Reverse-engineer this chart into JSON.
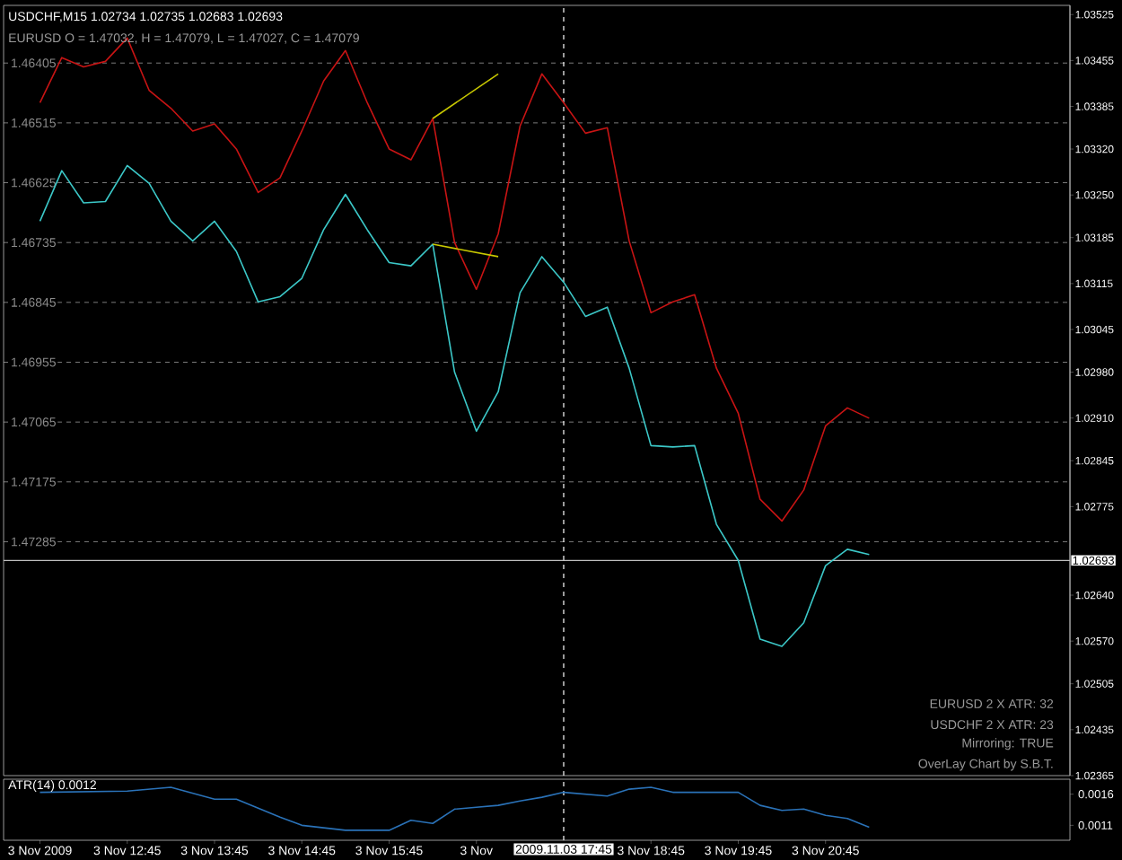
{
  "chart_data": [
    {
      "type": "line",
      "title": "USDCHF,M15  1.02734 1.02735 1.02683 1.02693",
      "subtitle": "EURUSD O = 1.47032, H = 1.47079, L = 1.47027, C = 1.47079",
      "x": [
        "2009-11-03T11:45",
        "2009-11-03T12:00",
        "2009-11-03T12:15",
        "2009-11-03T12:30",
        "2009-11-03T12:45",
        "2009-11-03T13:00",
        "2009-11-03T13:15",
        "2009-11-03T13:30",
        "2009-11-03T13:45",
        "2009-11-03T14:00",
        "2009-11-03T14:15",
        "2009-11-03T14:30",
        "2009-11-03T14:45",
        "2009-11-03T15:00",
        "2009-11-03T15:15",
        "2009-11-03T15:30",
        "2009-11-03T15:45",
        "2009-11-03T16:00",
        "2009-11-03T16:15",
        "2009-11-03T16:30",
        "2009-11-03T16:45",
        "2009-11-03T17:00",
        "2009-11-03T17:15",
        "2009-11-03T17:30",
        "2009-11-03T17:45",
        "2009-11-03T18:00",
        "2009-11-03T18:15",
        "2009-11-03T18:30",
        "2009-11-03T18:45",
        "2009-11-03T19:00",
        "2009-11-03T19:15",
        "2009-11-03T19:30",
        "2009-11-03T19:45",
        "2009-11-03T20:00",
        "2009-11-03T20:15",
        "2009-11-03T20:30",
        "2009-11-03T20:45",
        "2009-11-03T21:00",
        "2009-11-03T21:15"
      ],
      "xlim": [
        "2009-11-03T11:20",
        "2009-11-03T23:33"
      ],
      "ylim": [
        1.47715,
        1.46299
      ],
      "yticks": [
        1.46405,
        1.46515,
        1.46625,
        1.46735,
        1.46845,
        1.46955,
        1.47065,
        1.47175,
        1.47285
      ],
      "y2lim": [
        1.02365,
        1.03539
      ],
      "y2ticks": [
        1.03525,
        1.03455,
        1.03385,
        {
          "value": 1.0332,
          "label": "1.03320"
        },
        {
          "value": 1.0325,
          "label": "1.03250"
        },
        1.03185,
        1.03115,
        1.03045,
        {
          "value": 1.0298,
          "label": "1.02980"
        },
        {
          "value": 1.0291,
          "label": "1.02910"
        },
        1.02845,
        1.02775,
        {
          "value": 1.0264,
          "label": "1.02640"
        },
        {
          "value": 1.0257,
          "label": "1.02570"
        },
        1.02505,
        1.02435,
        1.02365
      ],
      "grid": "y",
      "tick_labels": "y",
      "ref_lines": [
        {
          "axis": "y2",
          "value": 1.02693,
          "label": "1.02693",
          "color": "#c0c0c0"
        },
        {
          "axis": "x",
          "value": "2009-11-03T17:45",
          "color": "#ffffff",
          "line_style": "dashed"
        }
      ],
      "annotations": [
        "EURUSD 2 X ATR: 32",
        "USDCHF 2 X ATR: 23",
        "Mirroring: TRUE",
        "OverLay Chart by S.B.T."
      ],
      "series": [
        {
          "color": "#c81414",
          "values": [
            1.46478,
            1.46395,
            1.46412,
            1.46402,
            1.46359,
            1.46455,
            1.46488,
            1.4653,
            1.46517,
            1.46563,
            1.46643,
            1.46616,
            1.4653,
            1.46438,
            1.46382,
            1.46478,
            1.46563,
            1.46583,
            1.46507,
            1.46735,
            1.46821,
            1.46719,
            1.46521,
            1.46425,
            1.46478,
            1.46534,
            1.46524,
            1.46732,
            1.46864,
            1.46844,
            1.46831,
            1.46966,
            1.47049,
            1.47207,
            1.47247,
            1.4719,
            1.47072,
            1.47039,
            1.47058
          ]
        },
        {
          "color": "#3cc8c8",
          "axis": "y2",
          "values": [
            1.0321,
            1.03287,
            1.03238,
            1.0324,
            1.03295,
            1.03268,
            1.0321,
            1.0318,
            1.0321,
            1.03164,
            1.03087,
            1.03095,
            1.03123,
            1.03197,
            1.03251,
            1.03197,
            1.03147,
            1.03142,
            1.03175,
            1.0298,
            1.0289,
            1.0295,
            1.03101,
            1.03156,
            1.03117,
            1.03065,
            1.03079,
            1.02986,
            1.02868,
            1.02866,
            1.02868,
            1.02748,
            1.02693,
            1.02573,
            1.02562,
            1.02598,
            1.02685,
            1.0271,
            1.02702
          ]
        },
        {
          "color": "#c8c800",
          "x": [
            "2009-11-03T16:15",
            "2009-11-03T17:00"
          ],
          "values": [
            1.46507,
            1.46425
          ]
        },
        {
          "color": "#c8c800",
          "axis": "y2",
          "x": [
            "2009-11-03T16:15",
            "2009-11-03T17:00"
          ],
          "values": [
            1.03175,
            1.03156
          ]
        }
      ]
    },
    {
      "type": "line",
      "title": "ATR(14) 0.0012",
      "xlim": [
        "2009-11-03T11:20",
        "2009-11-03T23:33"
      ],
      "xticks": [
        {
          "value": "2009-11-03T11:45",
          "label": "3 Nov 2009"
        },
        {
          "value": "2009-11-03T12:45",
          "label": "3 Nov 12:45"
        },
        {
          "value": "2009-11-03T13:45",
          "label": "3 Nov 13:45"
        },
        {
          "value": "2009-11-03T14:45",
          "label": "3 Nov 14:45"
        },
        {
          "value": "2009-11-03T15:45",
          "label": "3 Nov 15:45"
        },
        {
          "value": "2009-11-03T16:45",
          "label": "3 Nov"
        },
        {
          "value": "2009-11-03T18:45",
          "label": "3 Nov 18:45"
        },
        {
          "value": "2009-11-03T19:45",
          "label": "3 Nov 19:45"
        },
        {
          "value": "2009-11-03T20:45",
          "label": "3 Nov 20:45"
        }
      ],
      "ylim": [
        0.00086,
        0.00184
      ],
      "yticks": [
        0.0016,
        0.0011
      ],
      "ref_lines": [
        {
          "axis": "x",
          "value": "2009-11-03T17:45",
          "label": "2009.11.03 17:45",
          "color": "#ffffff",
          "line_style": "dashed"
        }
      ],
      "series": [
        {
          "color": "#2a72b8",
          "x": [
            "2009-11-03T11:45",
            "2009-11-03T12:45",
            "2009-11-03T13:15",
            "2009-11-03T13:45",
            "2009-11-03T14:00",
            "2009-11-03T14:30",
            "2009-11-03T14:45",
            "2009-11-03T15:15",
            "2009-11-03T15:45",
            "2009-11-03T16:00",
            "2009-11-03T16:15",
            "2009-11-03T16:30",
            "2009-11-03T16:45",
            "2009-11-03T17:00",
            "2009-11-03T17:15",
            "2009-11-03T17:30",
            "2009-11-03T17:45",
            "2009-11-03T18:15",
            "2009-11-03T18:30",
            "2009-11-03T18:45",
            "2009-11-03T19:00",
            "2009-11-03T19:45",
            "2009-11-03T20:00",
            "2009-11-03T20:15",
            "2009-11-03T20:30",
            "2009-11-03T20:45",
            "2009-11-03T21:00",
            "2009-11-03T21:15"
          ],
          "values": [
            0.00163,
            0.00165,
            0.00171,
            0.00152,
            0.00152,
            0.00123,
            0.0011,
            0.00102,
            0.00102,
            0.00118,
            0.00113,
            0.00136,
            0.00139,
            0.00142,
            0.00149,
            0.00155,
            0.00163,
            0.00157,
            0.00168,
            0.00171,
            0.00163,
            0.00163,
            0.00142,
            0.00134,
            0.00136,
            0.00126,
            0.00121,
            0.00107
          ]
        }
      ]
    }
  ]
}
